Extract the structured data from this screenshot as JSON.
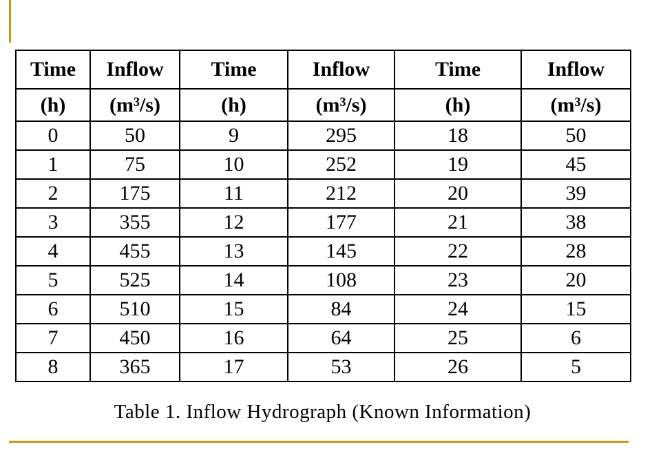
{
  "page": {
    "background": "#FFFFFF",
    "accent_gold": "#C39A0D",
    "border_color": "#000000"
  },
  "table": {
    "header_row": [
      "Time",
      "Inflow",
      "Time",
      "Inflow",
      "Time",
      "Inflow"
    ],
    "unit_row": [
      "(h)",
      "(m³/s)",
      "(h)",
      "(m³/s)",
      "(h)",
      "(m³/s)"
    ],
    "rows": [
      [
        "0",
        "50",
        "9",
        "295",
        "18",
        "50"
      ],
      [
        "1",
        "75",
        "10",
        "252",
        "19",
        "45"
      ],
      [
        "2",
        "175",
        "11",
        "212",
        "20",
        "39"
      ],
      [
        "3",
        "355",
        "12",
        "177",
        "21",
        "38"
      ],
      [
        "4",
        "455",
        "13",
        "145",
        "22",
        "28"
      ],
      [
        "5",
        "525",
        "14",
        "108",
        "23",
        "20"
      ],
      [
        "6",
        "510",
        "15",
        "84",
        "24",
        "15"
      ],
      [
        "7",
        "450",
        "16",
        "64",
        "25",
        "6"
      ],
      [
        "8",
        "365",
        "17",
        "53",
        "26",
        "5"
      ]
    ]
  },
  "caption": "Table 1. Inflow Hydrograph (Known Information)"
}
